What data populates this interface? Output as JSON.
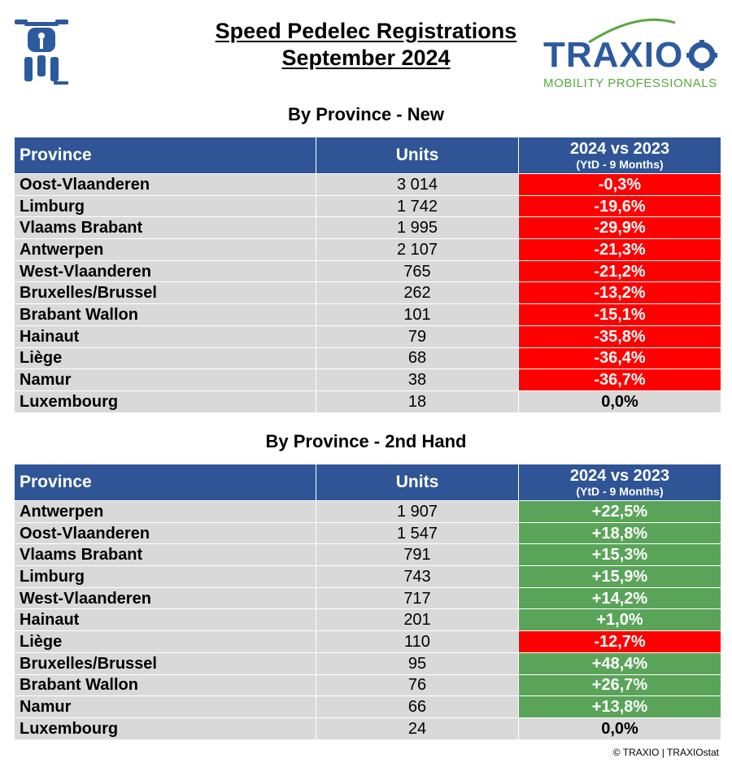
{
  "header": {
    "title_line1": "Speed Pedelec Registrations",
    "title_line2": "September 2024",
    "brand_name": "TRAXIO",
    "brand_tagline": "MOBILITY PROFESSIONALS",
    "icon_name": "speed-pedelec-rider-icon"
  },
  "colors": {
    "header_bg": "#2f5597",
    "negative": "#ff0000",
    "positive": "#5aa45a",
    "neutral": "#d9d9d9",
    "brand_blue": "#2d5a9e",
    "brand_green": "#5aa642"
  },
  "new": {
    "section_title": "By Province - New",
    "columns": {
      "province": "Province",
      "units": "Units",
      "change": "2024 vs 2023",
      "change_sub": "(YtD - 9 Months)"
    },
    "rows": [
      {
        "province": "Oost-Vlaanderen",
        "units": "3 014",
        "change": "-0,3%"
      },
      {
        "province": "Limburg",
        "units": "1 742",
        "change": "-19,6%"
      },
      {
        "province": "Vlaams Brabant",
        "units": "1 995",
        "change": "-29,9%"
      },
      {
        "province": "Antwerpen",
        "units": "2 107",
        "change": "-21,3%"
      },
      {
        "province": "West-Vlaanderen",
        "units": "765",
        "change": "-21,2%"
      },
      {
        "province": "Bruxelles/Brussel",
        "units": "262",
        "change": "-13,2%"
      },
      {
        "province": "Brabant Wallon",
        "units": "101",
        "change": "-15,1%"
      },
      {
        "province": "Hainaut",
        "units": "79",
        "change": "-35,8%"
      },
      {
        "province": "Liège",
        "units": "68",
        "change": "-36,4%"
      },
      {
        "province": "Namur",
        "units": "38",
        "change": "-36,7%"
      },
      {
        "province": "Luxembourg",
        "units": "18",
        "change": "0,0%"
      }
    ]
  },
  "second_hand": {
    "section_title": "By Province - 2nd Hand",
    "columns": {
      "province": "Province",
      "units": "Units",
      "change": "2024 vs 2023",
      "change_sub": "(YtD - 9 Months)"
    },
    "rows": [
      {
        "province": "Antwerpen",
        "units": "1 907",
        "change": "+22,5%"
      },
      {
        "province": "Oost-Vlaanderen",
        "units": "1 547",
        "change": "+18,8%"
      },
      {
        "province": "Vlaams Brabant",
        "units": "791",
        "change": "+15,3%"
      },
      {
        "province": "Limburg",
        "units": "743",
        "change": "+15,9%"
      },
      {
        "province": "West-Vlaanderen",
        "units": "717",
        "change": "+14,2%"
      },
      {
        "province": "Hainaut",
        "units": "201",
        "change": "+1,0%"
      },
      {
        "province": "Liège",
        "units": "110",
        "change": "-12,7%"
      },
      {
        "province": "Bruxelles/Brussel",
        "units": "95",
        "change": "+48,4%"
      },
      {
        "province": "Brabant Wallon",
        "units": "76",
        "change": "+26,7%"
      },
      {
        "province": "Namur",
        "units": "66",
        "change": "+13,8%"
      },
      {
        "province": "Luxembourg",
        "units": "24",
        "change": "0,0%"
      }
    ]
  },
  "footer": {
    "copyright": "© TRAXIO | TRAXIOstat"
  }
}
